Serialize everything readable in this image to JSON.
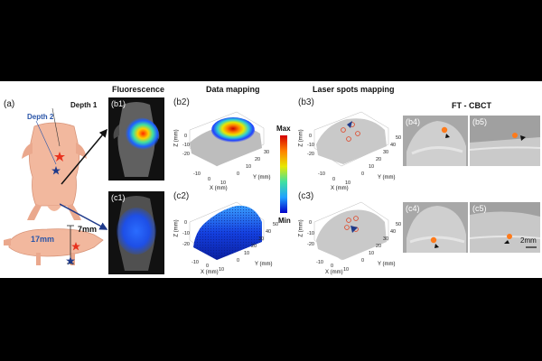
{
  "figure_labels": {
    "a": "(a)",
    "b1": "(b1)",
    "c1": "(c1)",
    "b2": "(b2)",
    "c2": "(c2)",
    "b3": "(b3)",
    "c3": "(c3)",
    "b4": "(b4)",
    "b5": "(b5)",
    "c4": "(c4)",
    "c5": "(c5)"
  },
  "column_titles": {
    "fluorescence": "Fluorescence",
    "data_mapping": "Data mapping",
    "laser_spots": "Laser spots mapping",
    "ftcbct": "FT - CBCT"
  },
  "depth_labels": {
    "depth1": "Depth 1",
    "depth2": "Depth 2",
    "d17": "17mm",
    "d7": "7mm"
  },
  "colorbar": {
    "max": "Max",
    "min": "Min"
  },
  "scale_bar": "2mm",
  "axes": {
    "b2": {
      "x_label": "X (mm)",
      "y_label": "Y (mm)",
      "z_label": "Z (mm)",
      "z_ticks": [
        "0",
        "-10",
        "-20"
      ],
      "x_ticks": [
        "-10",
        "0",
        "10"
      ],
      "y_ticks": [
        "0",
        "10",
        "20",
        "30"
      ]
    },
    "c2": {
      "x_label": "X (mm)",
      "y_label": "Y (mm)",
      "z_label": "Z (mm)",
      "z_ticks": [
        "0",
        "-10",
        "-20"
      ],
      "x_ticks": [
        "-10",
        "0",
        "10"
      ],
      "y_ticks": [
        "0",
        "10",
        "20",
        "30",
        "40",
        "50"
      ]
    },
    "b3": {
      "x_label": "X (mm)",
      "y_label": "Y (mm)",
      "z_label": "Z (mm)",
      "z_ticks": [
        "0",
        "-10",
        "-20"
      ],
      "x_ticks": [
        "-10",
        "0",
        "10"
      ],
      "y_ticks": [
        "0",
        "10",
        "20",
        "30",
        "40",
        "50"
      ]
    },
    "c3": {
      "x_label": "X (mm)",
      "y_label": "Y (mm)",
      "z_label": "Z (mm)",
      "z_ticks": [
        "0",
        "-10",
        "-20"
      ],
      "x_ticks": [
        "-10",
        "0",
        "10"
      ],
      "y_ticks": [
        "0",
        "10",
        "20",
        "30",
        "40",
        "50"
      ]
    }
  },
  "colors": {
    "depth2_label": "#2a55a8",
    "star_red": "#e8321e",
    "star_blue": "#1f3a8a",
    "colorbar_top": "#d40000",
    "colorbar_bottom": "#0000c8"
  }
}
